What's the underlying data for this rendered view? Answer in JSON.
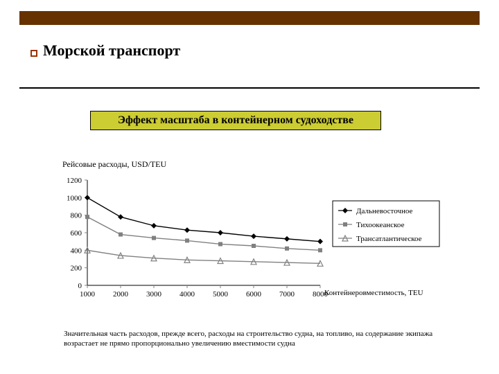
{
  "top_bar_color": "#663300",
  "bullet_border_color": "#993300",
  "title": "Морской транспорт",
  "subtitle": "Эффект масштаба в контейнерном судоходстве",
  "subtitle_bg": "#cccc33",
  "y_axis_caption": "Рейсовые расходы, USD/TEU",
  "body_text": "Значительная часть расходов, прежде всего, расходы на строительство судна, на топливо, на содержание экипажа возрастает не прямо пропорционально увеличению вместимости судна",
  "chart": {
    "type": "line",
    "x_label": "Контейнеровместимость, TEU",
    "x_values": [
      1000,
      2000,
      3000,
      4000,
      5000,
      6000,
      7000,
      8000
    ],
    "y_ticks": [
      0,
      200,
      400,
      600,
      800,
      1000,
      1200
    ],
    "ylim": [
      0,
      1200
    ],
    "label_fontsize": 11,
    "tick_fontsize": 11,
    "axis_color": "#000000",
    "tick_color": "#808080",
    "background_color": "#ffffff",
    "legend_border": "#000000",
    "series": [
      {
        "name": "Дальневосточное",
        "marker": "diamond",
        "color": "#000000",
        "values": [
          1000,
          780,
          680,
          630,
          600,
          560,
          530,
          500
        ]
      },
      {
        "name": "Тихоокеанское",
        "marker": "square",
        "color": "#808080",
        "values": [
          780,
          580,
          540,
          510,
          470,
          450,
          420,
          400
        ]
      },
      {
        "name": "Трансатлантическое",
        "marker": "triangle",
        "color": "#808080",
        "values": [
          400,
          340,
          310,
          290,
          280,
          270,
          260,
          250
        ]
      }
    ]
  }
}
